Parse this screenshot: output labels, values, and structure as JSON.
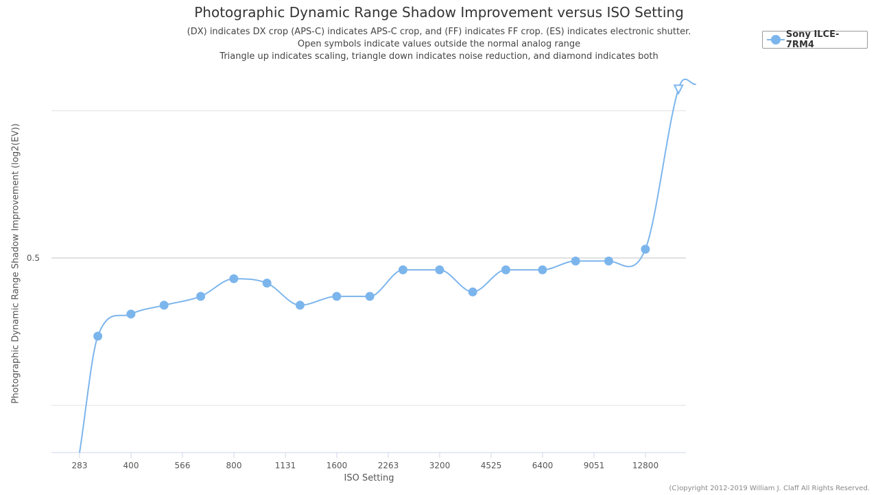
{
  "chart_data": {
    "type": "line",
    "title": "Photographic Dynamic Range Shadow Improvement versus ISO Setting",
    "subtitle_lines": [
      "(DX) indicates DX crop (APS-C) indicates APS-C crop, and (FF) indicates FF crop. (ES) indicates electronic shutter.",
      "Open symbols indicate values outside the normal analog range",
      "Triangle up indicates scaling, triangle down indicates noise reduction, and diamond indicates both"
    ],
    "xlabel": "ISO Setting",
    "ylabel": "Photographic Dynamic Range Shadow Improvement (log2(EV))",
    "x_tick_labels": [
      "283",
      "400",
      "566",
      "800",
      "1131",
      "1600",
      "2263",
      "3200",
      "4525",
      "6400",
      "9051",
      "12800"
    ],
    "y_tick_labels": [
      {
        "value": 0.5,
        "label": "0.5"
      }
    ],
    "y_gridlines": [
      0.4,
      0.5,
      0.6
    ],
    "ylim": [
      0.368,
      0.618
    ],
    "x_scale": "log2",
    "legend_position": "top-right",
    "series": [
      {
        "name": "Sony ILCE-7RM4",
        "color": "#7cb5ec",
        "points": [
          {
            "x": 283,
            "y": 0.368,
            "marker": "none"
          },
          {
            "x": 320,
            "y": 0.447,
            "marker": "circle"
          },
          {
            "x": 400,
            "y": 0.462,
            "marker": "circle"
          },
          {
            "x": 500,
            "y": 0.468,
            "marker": "circle"
          },
          {
            "x": 640,
            "y": 0.474,
            "marker": "circle"
          },
          {
            "x": 800,
            "y": 0.486,
            "marker": "circle"
          },
          {
            "x": 1000,
            "y": 0.483,
            "marker": "circle"
          },
          {
            "x": 1250,
            "y": 0.468,
            "marker": "circle"
          },
          {
            "x": 1600,
            "y": 0.474,
            "marker": "circle"
          },
          {
            "x": 2000,
            "y": 0.474,
            "marker": "circle"
          },
          {
            "x": 2500,
            "y": 0.492,
            "marker": "circle"
          },
          {
            "x": 3200,
            "y": 0.492,
            "marker": "circle"
          },
          {
            "x": 4000,
            "y": 0.477,
            "marker": "circle"
          },
          {
            "x": 5000,
            "y": 0.492,
            "marker": "circle"
          },
          {
            "x": 6400,
            "y": 0.492,
            "marker": "circle"
          },
          {
            "x": 8000,
            "y": 0.498,
            "marker": "circle"
          },
          {
            "x": 10000,
            "y": 0.498,
            "marker": "circle"
          },
          {
            "x": 12800,
            "y": 0.506,
            "marker": "circle"
          },
          {
            "x": 16000,
            "y": 0.615,
            "marker": "triangle-down-open"
          },
          {
            "x": 18000,
            "y": 0.618,
            "marker": "none"
          }
        ]
      }
    ]
  },
  "copyright": "(C)opyright 2012-2019 William J. Claff All Rights Reserved."
}
